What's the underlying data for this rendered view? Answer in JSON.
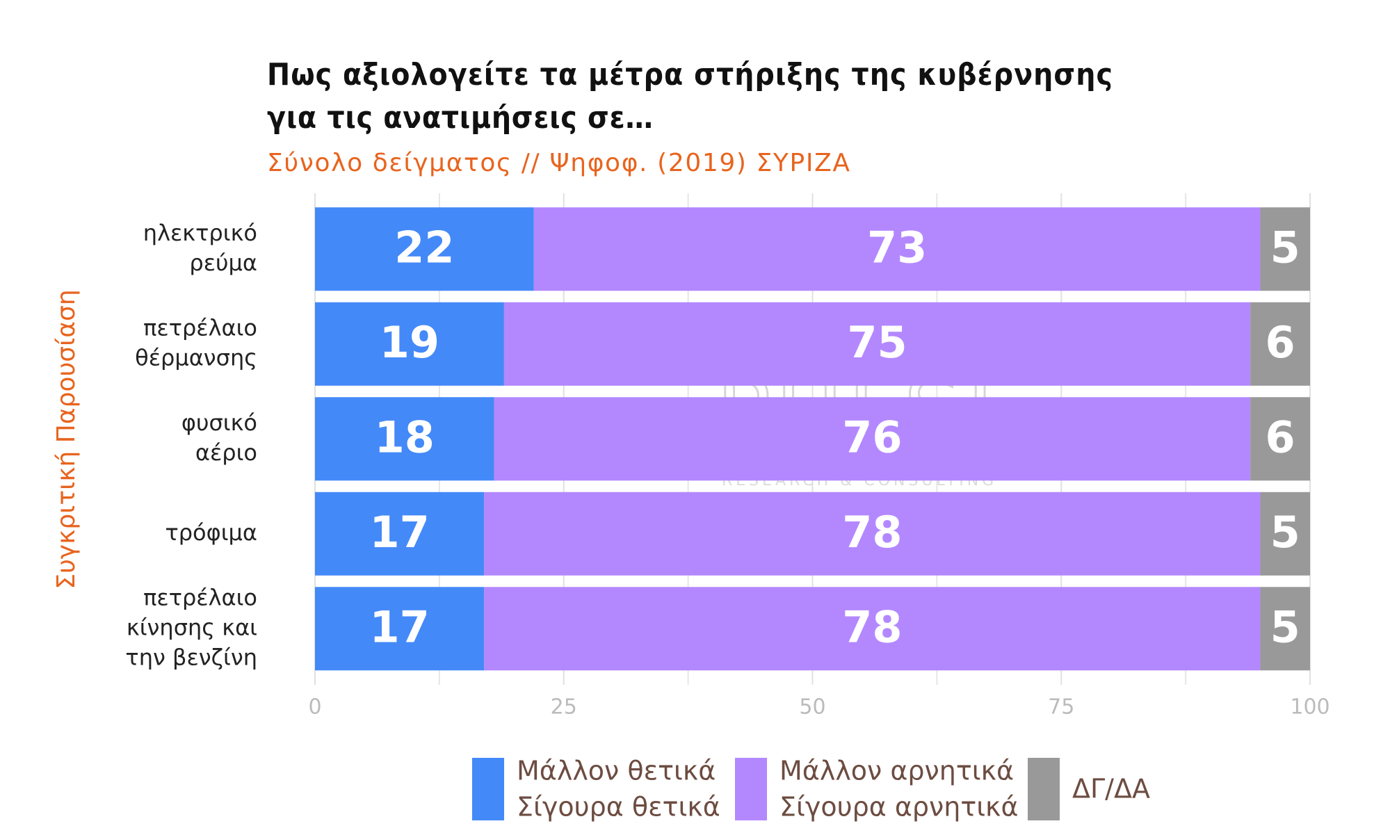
{
  "chart_data": {
    "type": "stacked-bar-horizontal",
    "title": [
      "Πως αξιολογείτε τα μέτρα στήριξης της κυβέρνησης",
      "για τις ανατιμήσεις σε…"
    ],
    "subtitle": "Σύνολο δείγματος // Ψηφοφ. (2019)  ΣΥΡΙΖΑ",
    "y_label": "Συγκριτική  Παρουσίαση",
    "watermark": "PULSE",
    "watermark_sub": "RESEARCH & CONSULTING",
    "categories": [
      [
        "ηλεκτρικό",
        "ρεύμα"
      ],
      [
        "πετρέλαιο",
        "θέρμανσης"
      ],
      [
        "φυσικό",
        "αέριο"
      ],
      [
        "τρόφιμα"
      ],
      [
        "πετρέλαιο",
        "κίνησης και",
        "την βενζίνη"
      ]
    ],
    "series": [
      {
        "name": [
          "Μάλλον θετικά",
          "Σίγουρα θετικά"
        ],
        "color": "#4489f8",
        "values": [
          22,
          19,
          18,
          17,
          17
        ]
      },
      {
        "name": [
          "Μάλλον αρνητικά",
          "Σίγουρα αρνητικά"
        ],
        "color": "#b388ff",
        "values": [
          73,
          75,
          76,
          78,
          78
        ]
      },
      {
        "name": [
          "ΔΓ/ΔΑ"
        ],
        "color": "#999999",
        "values": [
          5,
          6,
          6,
          5,
          5
        ]
      }
    ],
    "xlim": [
      0,
      100
    ],
    "xticks": [
      0,
      25,
      50,
      75,
      100
    ],
    "minor_xticks": [
      12.5,
      37.5,
      62.5,
      87.5
    ],
    "grid": true
  }
}
